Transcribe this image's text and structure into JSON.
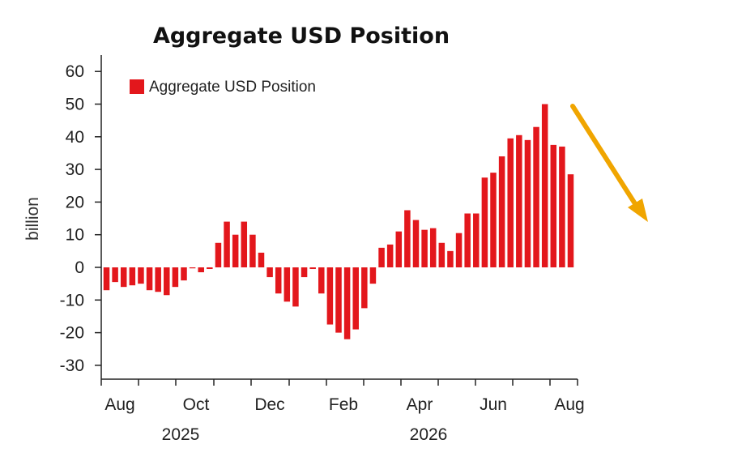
{
  "chart_data": {
    "type": "bar",
    "title": "Aggregate USD Position",
    "ylabel": "billion",
    "legend": "Aggregate USD Position",
    "legend_position": "top-left",
    "ylim": [
      -35,
      65
    ],
    "y_ticks": [
      "60",
      "50",
      "40",
      "30",
      "20",
      "10",
      "0",
      "-10",
      "-20",
      "-30"
    ],
    "month_labels": [
      "Aug",
      "Oct",
      "Dec",
      "Feb",
      "Apr",
      "Jun",
      "Aug"
    ],
    "year_labels": [
      "2025",
      "2026"
    ],
    "bar_color": "#e3171c",
    "values": [
      -7,
      -4.5,
      -6,
      -5.5,
      -5,
      -7,
      -7.5,
      -8.5,
      -6,
      -4,
      -0.3,
      -1.5,
      -0.5,
      7.5,
      14,
      10,
      14,
      10,
      4.5,
      -3,
      -8,
      -10.5,
      -12,
      -3,
      -0.5,
      -8,
      -17.5,
      -20,
      -22,
      -19,
      -12.5,
      -5,
      6,
      7,
      11,
      17.5,
      14.5,
      11.5,
      12,
      7.5,
      5,
      10.5,
      16.5,
      16.5,
      27.5,
      29,
      34,
      39.5,
      40.5,
      39,
      43,
      50,
      37.5,
      37,
      28.5
    ],
    "trend_arrow": {
      "color": "#f0a500",
      "direction": "down"
    }
  }
}
